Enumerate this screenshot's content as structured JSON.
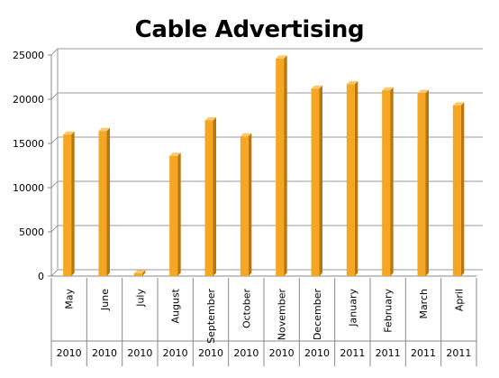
{
  "chart_data": {
    "type": "bar",
    "title": "Cable Advertising",
    "xlabel": "",
    "ylabel": "",
    "categories": [
      "May",
      "June",
      "July",
      "August",
      "September",
      "October",
      "November",
      "December",
      "January",
      "February",
      "March",
      "April"
    ],
    "category_years": [
      "2010",
      "2010",
      "2010",
      "2010",
      "2010",
      "2010",
      "2010",
      "2010",
      "2011",
      "2011",
      "2011",
      "2011"
    ],
    "values": [
      16000,
      16400,
      300,
      13600,
      17600,
      15800,
      24600,
      21200,
      21700,
      21000,
      20700,
      19300
    ],
    "ylim": [
      0,
      25000
    ],
    "yticks": [
      "0",
      "5000",
      "10000",
      "15000",
      "20000",
      "25000"
    ],
    "grid": true,
    "legend": "none",
    "colors": {
      "bar": "#f5a623",
      "bar_side": "#b8760f",
      "bar_top": "#fcc96a",
      "grid": "#9a9a9a"
    }
  }
}
